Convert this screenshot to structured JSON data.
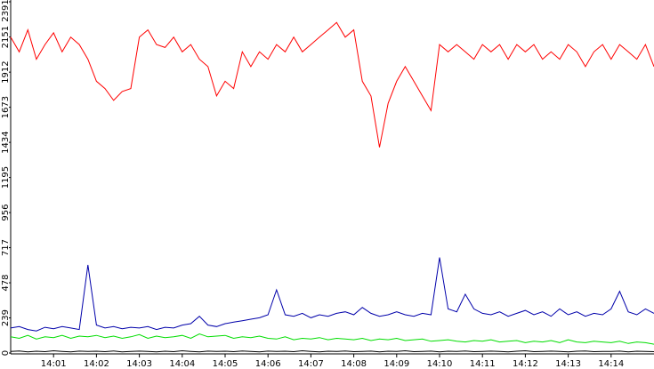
{
  "chart_data": {
    "type": "line",
    "categories": [
      null,
      null,
      null,
      null,
      null,
      "14:01",
      null,
      null,
      null,
      null,
      "14:02",
      null,
      null,
      null,
      null,
      "14:03",
      null,
      null,
      null,
      null,
      "14:04",
      null,
      null,
      null,
      null,
      "14:05",
      null,
      null,
      null,
      null,
      "14:06",
      null,
      null,
      null,
      null,
      "14:07",
      null,
      null,
      null,
      null,
      "14:08",
      null,
      null,
      null,
      null,
      "14:09",
      null,
      null,
      null,
      null,
      "14:10",
      null,
      null,
      null,
      null,
      "14:11",
      null,
      null,
      null,
      null,
      "14:12",
      null,
      null,
      null,
      null,
      "14:13",
      null,
      null,
      null,
      null,
      "14:14",
      null,
      null,
      null,
      null,
      null
    ],
    "ylim": [
      0,
      2391
    ],
    "yticks": [
      0,
      239,
      478,
      717,
      956,
      1195,
      1434,
      1673,
      1912,
      2151,
      2391
    ],
    "series": [
      {
        "color": "#ff0000",
        "values": [
          2150,
          2050,
          2200,
          2000,
          2100,
          2180,
          2050,
          2150,
          2100,
          2000,
          1850,
          1800,
          1720,
          1780,
          1800,
          2150,
          2200,
          2100,
          2080,
          2150,
          2050,
          2100,
          2000,
          1950,
          1750,
          1850,
          1800,
          2050,
          1950,
          2050,
          2000,
          2100,
          2050,
          2150,
          2050,
          2100,
          2150,
          2200,
          2250,
          2150,
          2200,
          1850,
          1750,
          1400,
          1700,
          1850,
          1950,
          1850,
          1750,
          1650,
          2100,
          2050,
          2100,
          2050,
          2000,
          2100,
          2050,
          2100,
          2000,
          2100,
          2050,
          2100,
          2000,
          2050,
          2000,
          2100,
          2050,
          1950,
          2050,
          2100,
          2000,
          2100,
          2050,
          2000,
          2100,
          1950
        ]
      },
      {
        "color": "#0000aa",
        "values": [
          170,
          180,
          160,
          150,
          175,
          165,
          180,
          170,
          160,
          600,
          190,
          170,
          180,
          165,
          175,
          170,
          180,
          160,
          175,
          170,
          190,
          200,
          250,
          190,
          180,
          200,
          210,
          220,
          230,
          240,
          260,
          430,
          260,
          250,
          270,
          240,
          260,
          250,
          270,
          280,
          260,
          310,
          270,
          250,
          260,
          280,
          260,
          250,
          270,
          260,
          650,
          300,
          280,
          400,
          300,
          270,
          260,
          280,
          250,
          270,
          290,
          260,
          280,
          250,
          300,
          260,
          280,
          250,
          270,
          260,
          300,
          420,
          280,
          260,
          300,
          270
        ]
      },
      {
        "color": "#00dd00",
        "values": [
          110,
          100,
          120,
          95,
          110,
          105,
          120,
          100,
          115,
          110,
          120,
          105,
          115,
          100,
          110,
          125,
          100,
          115,
          105,
          110,
          120,
          100,
          130,
          110,
          115,
          120,
          100,
          110,
          105,
          115,
          100,
          95,
          110,
          90,
          100,
          95,
          105,
          90,
          100,
          95,
          90,
          100,
          85,
          95,
          90,
          100,
          85,
          90,
          95,
          80,
          85,
          90,
          80,
          75,
          85,
          80,
          90,
          75,
          80,
          85,
          70,
          80,
          75,
          85,
          70,
          90,
          75,
          70,
          80,
          75,
          70,
          80,
          65,
          75,
          70,
          60
        ]
      },
      {
        "color": "#000000",
        "values": [
          10,
          14,
          8,
          12,
          9,
          15,
          11,
          7,
          13,
          10,
          12,
          9,
          14,
          8,
          11,
          13,
          10,
          7,
          12,
          9,
          15,
          11,
          8,
          13,
          10,
          12,
          9,
          14,
          11,
          8,
          13,
          10,
          12,
          9,
          15,
          11,
          8,
          12,
          10,
          14,
          9,
          11,
          13,
          8,
          12,
          10,
          15,
          9,
          11,
          13,
          8,
          12,
          10,
          14,
          9,
          11,
          13,
          10,
          8,
          12,
          15,
          9,
          11,
          13,
          10,
          8,
          12,
          14,
          9,
          11,
          10,
          13,
          8,
          12,
          11,
          9
        ]
      }
    ]
  }
}
